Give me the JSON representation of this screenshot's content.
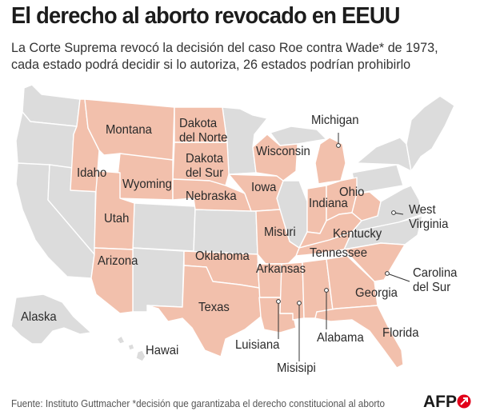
{
  "title": "El derecho al aborto revocado en EEUU",
  "subtitle": {
    "line1": "La Corte Suprema revocó la decisión del caso Roe contra Wade* de 1973,",
    "line2": "cada estado podrá decidir si lo autoriza, 26 estados podrían prohibirlo"
  },
  "colors": {
    "highlight": "#f2c0ac",
    "other": "#dcdcdc",
    "border": "#ffffff",
    "logo_red": "#e2001a"
  },
  "states": {
    "montana": "Montana",
    "dakota_norte": {
      "line1": "Dakota",
      "line2": "del Norte"
    },
    "dakota_sur": {
      "line1": "Dakota",
      "line2": "del Sur"
    },
    "idaho": "Idaho",
    "wyoming": "Wyoming",
    "nebraska": "Nebraska",
    "utah": "Utah",
    "arizona": "Arizona",
    "iowa": "Iowa",
    "wisconsin": "Wisconsin",
    "michigan": "Michigan",
    "indiana": "Indiana",
    "ohio": "Ohio",
    "west_virginia": {
      "line1": "West",
      "line2": "Virginia"
    },
    "kentucky": "Kentucky",
    "tennessee": "Tennessee",
    "misuri": "Misuri",
    "oklahoma": "Oklahoma",
    "arkansas": "Arkansas",
    "texas": "Texas",
    "luisiana": "Luisiana",
    "misisipi": "Misisipi",
    "alabama": "Alabama",
    "georgia": "Georgia",
    "florida": "Florida",
    "carolina_sur": {
      "line1": "Carolina",
      "line2": "del Sur"
    },
    "alaska": "Alaska",
    "hawai": "Hawai"
  },
  "footer": "Fuente: Instituto Guttmacher  *decisión que garantizaba el derecho constitucional al aborto",
  "logo": "AFP"
}
